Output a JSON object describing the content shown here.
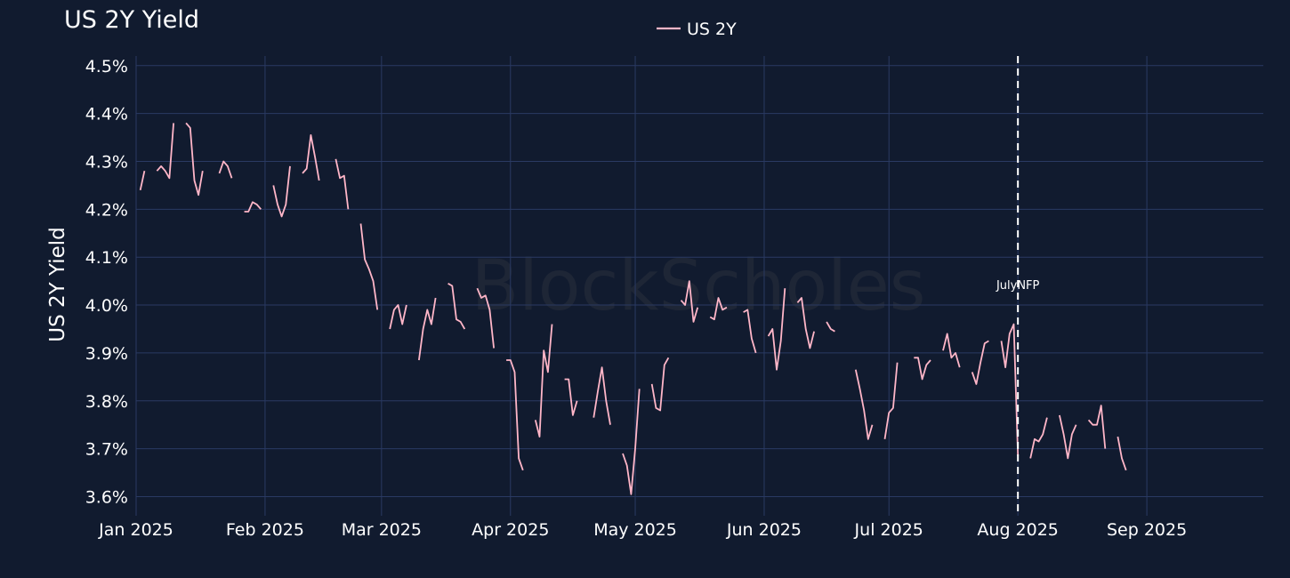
{
  "chart_data": {
    "type": "line",
    "title": "US 2Y Yield",
    "ylabel": "US 2Y Yield",
    "xlabel": "",
    "watermark": "BlockScholes",
    "legend": {
      "entries": [
        "US 2Y"
      ],
      "placement": "top-center"
    },
    "grid": true,
    "ylim": [
      3.56,
      4.52
    ],
    "y_ticks": [
      3.6,
      3.7,
      3.8,
      3.9,
      4.0,
      4.1,
      4.2,
      4.3,
      4.4,
      4.5
    ],
    "y_tick_labels": [
      "3.6%",
      "3.7%",
      "3.8%",
      "3.9%",
      "4.0%",
      "4.1%",
      "4.2%",
      "4.3%",
      "4.4%",
      "4.5%"
    ],
    "xlim": [
      "2025-01-01",
      "2025-09-29"
    ],
    "x_ticks": [
      "2025-01-01",
      "2025-02-01",
      "2025-03-01",
      "2025-04-01",
      "2025-05-01",
      "2025-06-01",
      "2025-07-01",
      "2025-08-01",
      "2025-09-01"
    ],
    "x_tick_labels": [
      "Jan 2025",
      "Feb 2025",
      "Mar 2025",
      "Apr 2025",
      "May 2025",
      "Jun 2025",
      "Jul 2025",
      "Aug 2025",
      "Sep 2025"
    ],
    "annotations": [
      {
        "x": "2025-08-01",
        "label": "JulyNFP",
        "style": "dashed-vertical-line"
      }
    ],
    "line_color": "#ffb6c8",
    "series": [
      {
        "name": "US 2Y",
        "segments": [
          [
            [
              "2025-01-02",
              4.24
            ],
            [
              "2025-01-03",
              4.28
            ]
          ],
          [
            [
              "2025-01-06",
              4.28
            ],
            [
              "2025-01-07",
              4.29
            ],
            [
              "2025-01-08",
              4.28
            ],
            [
              "2025-01-09",
              4.265
            ],
            [
              "2025-01-10",
              4.38
            ]
          ],
          [
            [
              "2025-01-13",
              4.38
            ],
            [
              "2025-01-14",
              4.37
            ],
            [
              "2025-01-15",
              4.26
            ],
            [
              "2025-01-16",
              4.23
            ],
            [
              "2025-01-17",
              4.28
            ]
          ],
          [
            [
              "2025-01-21",
              4.275
            ],
            [
              "2025-01-22",
              4.3
            ],
            [
              "2025-01-23",
              4.29
            ],
            [
              "2025-01-24",
              4.265
            ]
          ],
          [
            [
              "2025-01-27",
              4.195
            ],
            [
              "2025-01-28",
              4.195
            ],
            [
              "2025-01-29",
              4.215
            ],
            [
              "2025-01-30",
              4.21
            ],
            [
              "2025-01-31",
              4.2
            ]
          ],
          [
            [
              "2025-02-03",
              4.25
            ],
            [
              "2025-02-04",
              4.21
            ],
            [
              "2025-02-05",
              4.185
            ],
            [
              "2025-02-06",
              4.21
            ],
            [
              "2025-02-07",
              4.29
            ]
          ],
          [
            [
              "2025-02-10",
              4.275
            ],
            [
              "2025-02-11",
              4.285
            ],
            [
              "2025-02-12",
              4.355
            ],
            [
              "2025-02-13",
              4.31
            ],
            [
              "2025-02-14",
              4.26
            ]
          ],
          [
            [
              "2025-02-18",
              4.305
            ],
            [
              "2025-02-19",
              4.265
            ],
            [
              "2025-02-20",
              4.27
            ],
            [
              "2025-02-21",
              4.2
            ]
          ],
          [
            [
              "2025-02-24",
              4.17
            ],
            [
              "2025-02-25",
              4.095
            ],
            [
              "2025-02-26",
              4.075
            ],
            [
              "2025-02-27",
              4.05
            ],
            [
              "2025-02-28",
              3.99
            ]
          ],
          [
            [
              "2025-03-03",
              3.95
            ],
            [
              "2025-03-04",
              3.99
            ],
            [
              "2025-03-05",
              4.0
            ],
            [
              "2025-03-06",
              3.96
            ],
            [
              "2025-03-07",
              4.0
            ]
          ],
          [
            [
              "2025-03-10",
              3.885
            ],
            [
              "2025-03-11",
              3.95
            ],
            [
              "2025-03-12",
              3.99
            ],
            [
              "2025-03-13",
              3.96
            ],
            [
              "2025-03-14",
              4.015
            ]
          ],
          [
            [
              "2025-03-17",
              4.045
            ],
            [
              "2025-03-18",
              4.04
            ],
            [
              "2025-03-19",
              3.97
            ],
            [
              "2025-03-20",
              3.965
            ],
            [
              "2025-03-21",
              3.95
            ]
          ],
          [
            [
              "2025-03-24",
              4.035
            ],
            [
              "2025-03-25",
              4.015
            ],
            [
              "2025-03-26",
              4.02
            ],
            [
              "2025-03-27",
              3.99
            ],
            [
              "2025-03-28",
              3.91
            ]
          ],
          [
            [
              "2025-03-31",
              3.885
            ],
            [
              "2025-04-01",
              3.885
            ],
            [
              "2025-04-02",
              3.86
            ],
            [
              "2025-04-03",
              3.68
            ],
            [
              "2025-04-04",
              3.655
            ]
          ],
          [
            [
              "2025-04-07",
              3.76
            ],
            [
              "2025-04-08",
              3.725
            ],
            [
              "2025-04-09",
              3.905
            ],
            [
              "2025-04-10",
              3.86
            ],
            [
              "2025-04-11",
              3.96
            ]
          ],
          [
            [
              "2025-04-14",
              3.845
            ],
            [
              "2025-04-15",
              3.845
            ],
            [
              "2025-04-16",
              3.77
            ],
            [
              "2025-04-17",
              3.8
            ]
          ],
          [
            [
              "2025-04-21",
              3.765
            ],
            [
              "2025-04-22",
              3.82
            ],
            [
              "2025-04-23",
              3.87
            ],
            [
              "2025-04-24",
              3.8
            ],
            [
              "2025-04-25",
              3.75
            ]
          ],
          [
            [
              "2025-04-28",
              3.69
            ],
            [
              "2025-04-29",
              3.665
            ],
            [
              "2025-04-30",
              3.605
            ],
            [
              "2025-05-01",
              3.7
            ],
            [
              "2025-05-02",
              3.825
            ]
          ],
          [
            [
              "2025-05-05",
              3.835
            ],
            [
              "2025-05-06",
              3.785
            ],
            [
              "2025-05-07",
              3.78
            ],
            [
              "2025-05-08",
              3.875
            ],
            [
              "2025-05-09",
              3.89
            ]
          ],
          [
            [
              "2025-05-12",
              4.01
            ],
            [
              "2025-05-13",
              4.0
            ],
            [
              "2025-05-14",
              4.05
            ],
            [
              "2025-05-15",
              3.965
            ],
            [
              "2025-05-16",
              3.995
            ]
          ],
          [
            [
              "2025-05-19",
              3.975
            ],
            [
              "2025-05-20",
              3.97
            ],
            [
              "2025-05-21",
              4.015
            ],
            [
              "2025-05-22",
              3.99
            ],
            [
              "2025-05-23",
              3.995
            ]
          ],
          [
            [
              "2025-05-27",
              3.985
            ],
            [
              "2025-05-28",
              3.99
            ],
            [
              "2025-05-29",
              3.93
            ],
            [
              "2025-05-30",
              3.9
            ]
          ],
          [
            [
              "2025-06-02",
              3.935
            ],
            [
              "2025-06-03",
              3.95
            ],
            [
              "2025-06-04",
              3.865
            ],
            [
              "2025-06-05",
              3.925
            ],
            [
              "2025-06-06",
              4.035
            ]
          ],
          [
            [
              "2025-06-09",
              4.005
            ],
            [
              "2025-06-10",
              4.015
            ],
            [
              "2025-06-11",
              3.95
            ],
            [
              "2025-06-12",
              3.91
            ],
            [
              "2025-06-13",
              3.945
            ]
          ],
          [
            [
              "2025-06-16",
              3.965
            ],
            [
              "2025-06-17",
              3.95
            ],
            [
              "2025-06-18",
              3.945
            ]
          ],
          [
            [
              "2025-06-23",
              3.865
            ],
            [
              "2025-06-24",
              3.825
            ],
            [
              "2025-06-25",
              3.78
            ],
            [
              "2025-06-26",
              3.72
            ],
            [
              "2025-06-27",
              3.75
            ]
          ],
          [
            [
              "2025-06-30",
              3.72
            ],
            [
              "2025-07-01",
              3.775
            ],
            [
              "2025-07-02",
              3.785
            ],
            [
              "2025-07-03",
              3.88
            ]
          ],
          [
            [
              "2025-07-07",
              3.89
            ],
            [
              "2025-07-08",
              3.89
            ],
            [
              "2025-07-09",
              3.845
            ],
            [
              "2025-07-10",
              3.875
            ],
            [
              "2025-07-11",
              3.885
            ]
          ],
          [
            [
              "2025-07-14",
              3.905
            ],
            [
              "2025-07-15",
              3.94
            ],
            [
              "2025-07-16",
              3.89
            ],
            [
              "2025-07-17",
              3.9
            ],
            [
              "2025-07-18",
              3.87
            ]
          ],
          [
            [
              "2025-07-21",
              3.86
            ],
            [
              "2025-07-22",
              3.835
            ],
            [
              "2025-07-23",
              3.88
            ],
            [
              "2025-07-24",
              3.92
            ],
            [
              "2025-07-25",
              3.925
            ]
          ],
          [
            [
              "2025-07-28",
              3.925
            ],
            [
              "2025-07-29",
              3.87
            ],
            [
              "2025-07-30",
              3.94
            ],
            [
              "2025-07-31",
              3.96
            ],
            [
              "2025-08-01",
              3.685
            ]
          ],
          [
            [
              "2025-08-04",
              3.68
            ],
            [
              "2025-08-05",
              3.72
            ],
            [
              "2025-08-06",
              3.715
            ],
            [
              "2025-08-07",
              3.73
            ],
            [
              "2025-08-08",
              3.765
            ]
          ],
          [
            [
              "2025-08-11",
              3.77
            ],
            [
              "2025-08-12",
              3.73
            ],
            [
              "2025-08-13",
              3.68
            ],
            [
              "2025-08-14",
              3.73
            ],
            [
              "2025-08-15",
              3.75
            ]
          ],
          [
            [
              "2025-08-18",
              3.76
            ],
            [
              "2025-08-19",
              3.75
            ],
            [
              "2025-08-20",
              3.75
            ],
            [
              "2025-08-21",
              3.79
            ],
            [
              "2025-08-22",
              3.7
            ]
          ],
          [
            [
              "2025-08-25",
              3.725
            ],
            [
              "2025-08-26",
              3.68
            ],
            [
              "2025-08-27",
              3.655
            ]
          ]
        ]
      }
    ]
  }
}
